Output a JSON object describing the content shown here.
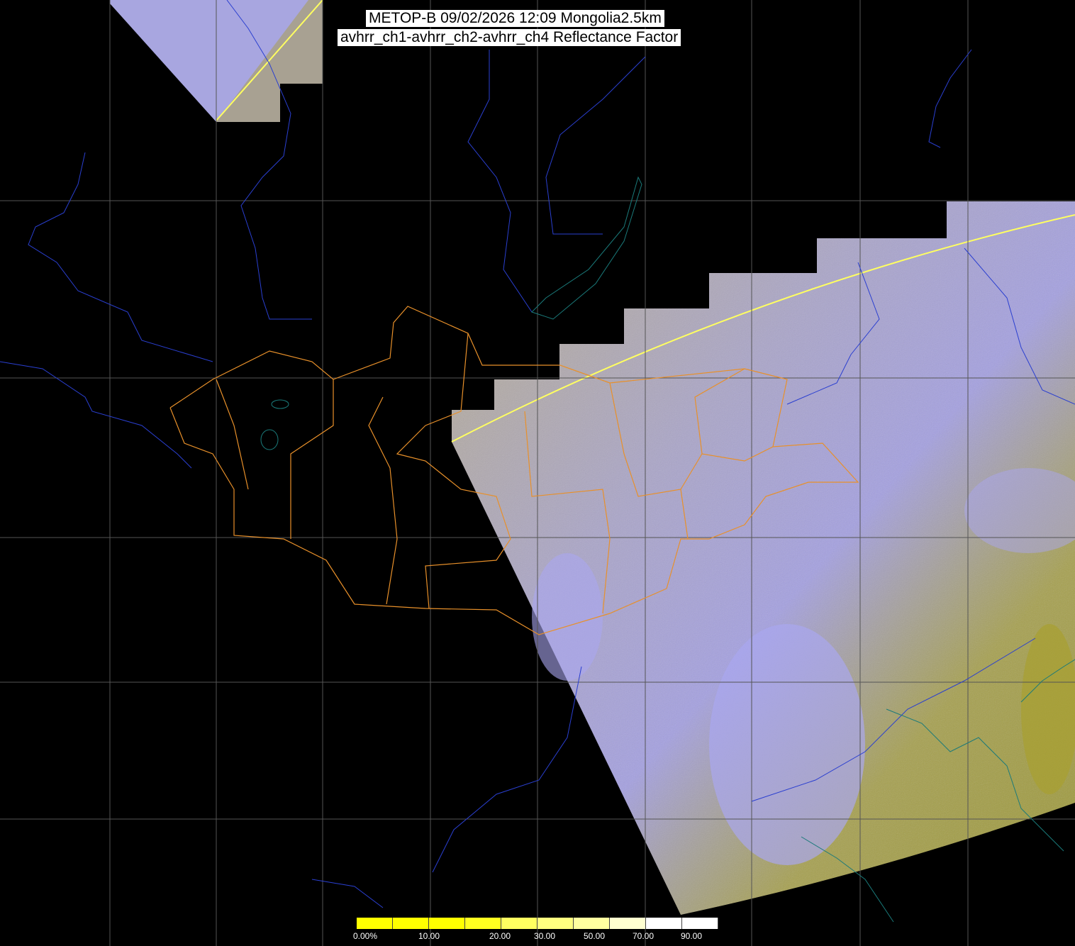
{
  "header": {
    "title_line1": "METOP-B 09/02/2026 12:09 Mongolia2.5km",
    "title_line2": "avhrr_ch1-avhrr_ch2-avhrr_ch4 Reflectance Factor"
  },
  "colors": {
    "background": "#000000",
    "grid": "#555555",
    "rivers": "#2a3fd0",
    "lakes": "#1a6a6a",
    "borders": "#e8902a",
    "swath_yellow": "#a09a40",
    "swath_lavender": "#a9a6e8",
    "swath_edge": "#ffff60"
  },
  "colorbar": {
    "ticks": [
      "0.00%",
      "10.00",
      "20.00",
      "30.00",
      "50.00",
      "70.00",
      "90.00"
    ],
    "tick_values": [
      0,
      10,
      20,
      30,
      50,
      70,
      90
    ],
    "segments": [
      "#ffff00",
      "#ffff00",
      "#ffff00",
      "#ffff20",
      "#ffff60",
      "#ffff80",
      "#ffffa0",
      "#ffffd0",
      "#ffffff",
      "#ffffff"
    ]
  }
}
